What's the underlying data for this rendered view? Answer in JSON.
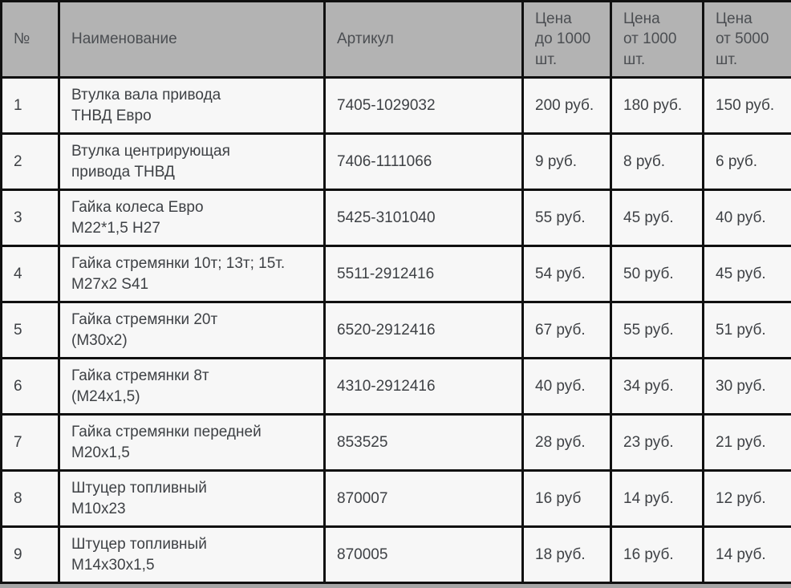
{
  "table": {
    "columns": [
      {
        "key": "num",
        "label": "№"
      },
      {
        "key": "name",
        "label": "Наименование"
      },
      {
        "key": "article",
        "label": "Артикул"
      },
      {
        "key": "price1",
        "label": "Цена\nдо 1000\nшт."
      },
      {
        "key": "price2",
        "label": "Цена\nот 1000\nшт."
      },
      {
        "key": "price3",
        "label": "Цена\nот 5000\nшт."
      }
    ],
    "rows": [
      {
        "num": "1",
        "name": "Втулка вала привода\nТНВД Евро",
        "article": "7405-1029032",
        "price1": "200 руб.",
        "price2": "180 руб.",
        "price3": "150 руб."
      },
      {
        "num": "2",
        "name": "Втулка центрирующая\nпривода ТНВД",
        "article": "7406-1111066",
        "price1": "9 руб.",
        "price2": "8 руб.",
        "price3": "6 руб."
      },
      {
        "num": "3",
        "name": "Гайка колеса Евро\nМ22*1,5 Н27",
        "article": "5425-3101040",
        "price1": "55 руб.",
        "price2": "45 руб.",
        "price3": "40 руб."
      },
      {
        "num": "4",
        "name": "Гайка стремянки 10т; 13т; 15т.\nМ27х2 S41",
        "article": "5511-2912416",
        "price1": "54 руб.",
        "price2": "50 руб.",
        "price3": "45 руб."
      },
      {
        "num": "5",
        "name": "Гайка стремянки 20т\n(М30х2)",
        "article": "6520-2912416",
        "price1": "67 руб.",
        "price2": "55 руб.",
        "price3": "51 руб."
      },
      {
        "num": "6",
        "name": "Гайка стремянки 8т\n(М24х1,5)",
        "article": "4310-2912416",
        "price1": "40 руб.",
        "price2": "34 руб.",
        "price3": "30 руб."
      },
      {
        "num": "7",
        "name": "Гайка стремянки передней\nМ20х1,5",
        "article": "853525",
        "price1": "28 руб.",
        "price2": "23 руб.",
        "price3": "21 руб."
      },
      {
        "num": "8",
        "name": "Штуцер топливный\nМ10х23",
        "article": "870007",
        "price1": "16 руб",
        "price2": "14 руб.",
        "price3": "12 руб."
      },
      {
        "num": "9",
        "name": "Штуцер топливный\nМ14х30х1,5",
        "article": "870005",
        "price1": "18 руб.",
        "price2": "16 руб.",
        "price3": "14 руб."
      }
    ]
  },
  "colors": {
    "header_bg": "#b3b3b3",
    "cell_bg": "#f7f7f7",
    "border": "#101010",
    "text": "#3e4145"
  }
}
